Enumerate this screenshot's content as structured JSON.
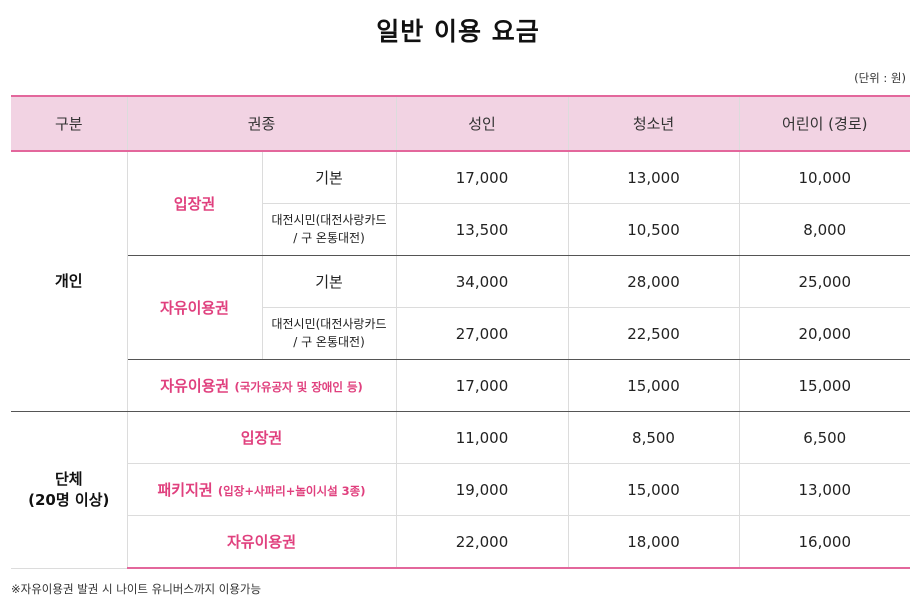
{
  "title": "일반 이용 요금",
  "unit_note": "(단위 : 원)",
  "headers": {
    "category": "구분",
    "ticket": "권종",
    "adult": "성인",
    "youth": "청소년",
    "child": "어린이 (경로)"
  },
  "individual": {
    "label": "개인",
    "admission": {
      "label": "입장권",
      "basic": {
        "label": "기본",
        "adult": "17,000",
        "youth": "13,000",
        "child": "10,000"
      },
      "citizen": {
        "label_line1": "대전시민(대전사랑카드",
        "label_line2": "/ 구 온통대전)",
        "adult": "13,500",
        "youth": "10,500",
        "child": "8,000"
      }
    },
    "free_pass": {
      "label": "자유이용권",
      "basic": {
        "label": "기본",
        "adult": "34,000",
        "youth": "28,000",
        "child": "25,000"
      },
      "citizen": {
        "label_line1": "대전시민(대전사랑카드",
        "label_line2": "/ 구 온통대전)",
        "adult": "27,000",
        "youth": "22,500",
        "child": "20,000"
      }
    },
    "free_pass_special": {
      "label": "자유이용권",
      "note": "(국가유공자 및 장애인 등)",
      "adult": "17,000",
      "youth": "15,000",
      "child": "15,000"
    }
  },
  "group": {
    "label_line1": "단체",
    "label_line2": "(20명 이상)",
    "admission": {
      "label": "입장권",
      "adult": "11,000",
      "youth": "8,500",
      "child": "6,500"
    },
    "package": {
      "label": "패키지권",
      "note": "(입장+사파리+놀이시설 3종)",
      "adult": "19,000",
      "youth": "15,000",
      "child": "13,000"
    },
    "free_pass": {
      "label": "자유이용권",
      "adult": "22,000",
      "youth": "18,000",
      "child": "16,000"
    }
  },
  "footnote": "※자유이용권 발권 시 나이트 유니버스까지 이용가능"
}
